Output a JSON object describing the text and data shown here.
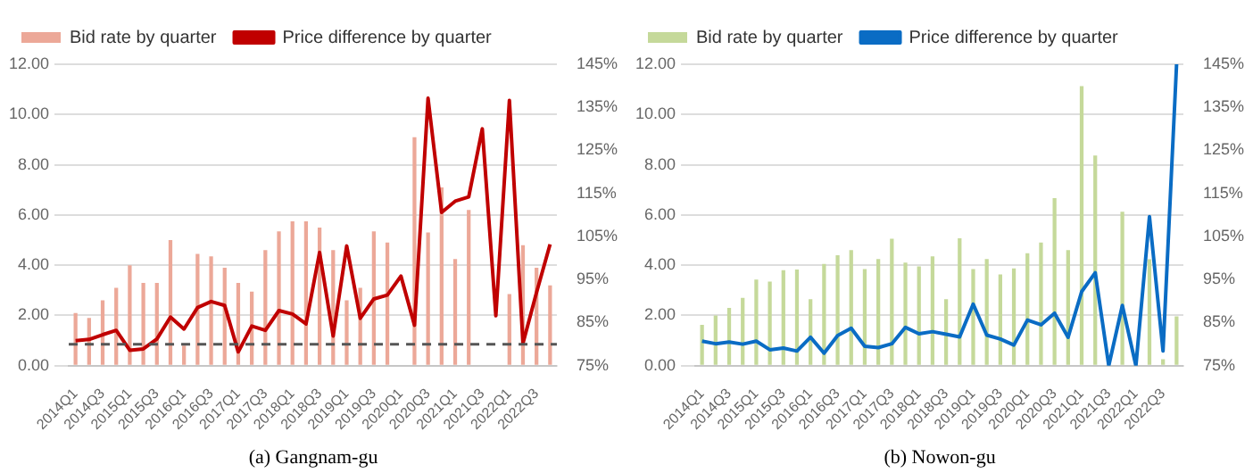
{
  "chart_data": [
    {
      "type": "bar",
      "title": "(a) Gangnam-gu",
      "categories": [
        "2014Q1",
        null,
        "2014Q3",
        null,
        "2015Q1",
        null,
        "2015Q3",
        null,
        "2016Q1",
        null,
        "2016Q3",
        null,
        "2017Q1",
        null,
        "2017Q3",
        null,
        "2018Q1",
        null,
        "2018Q3",
        null,
        "2019Q1",
        null,
        "2019Q3",
        null,
        "2020Q1",
        null,
        "2020Q3",
        null,
        "2021Q1",
        null,
        "2021Q3",
        null,
        "2022Q1",
        null,
        "2022Q3",
        null
      ],
      "series": [
        {
          "name": "Bid rate by quarter",
          "color": "#eca898",
          "values": [
            2.1,
            1.9,
            2.6,
            3.1,
            4.0,
            3.3,
            3.3,
            5.0,
            0.8,
            4.45,
            4.35,
            3.9,
            3.3,
            2.95,
            4.6,
            5.35,
            5.75,
            5.75,
            5.5,
            4.6,
            2.6,
            3.1,
            5.35,
            4.9,
            null,
            9.1,
            5.3,
            7.1,
            4.25,
            6.2,
            null,
            null,
            2.85,
            4.8,
            3.9,
            3.2
          ]
        },
        {
          "name": "Price difference by quarter",
          "type": "line",
          "axis": "y2",
          "color": "#c00000",
          "values": [
            80.8,
            81.1,
            82.2,
            83.2,
            78.6,
            78.9,
            81.2,
            86.3,
            83.5,
            88.5,
            89.9,
            89.0,
            78.2,
            84.2,
            83.2,
            87.8,
            87.0,
            84.7,
            101.3,
            81.9,
            102.8,
            86.0,
            90.5,
            91.4,
            95.8,
            84.4,
            137.1,
            110.6,
            113.2,
            114.2,
            130.0,
            86.6,
            136.6,
            80.2,
            92.0,
            103.2
          ]
        }
      ],
      "ylim": [
        0,
        12
      ],
      "yticks": [
        {
          "value": 0,
          "label": "0.00"
        },
        {
          "value": 2,
          "label": "2.00"
        },
        {
          "value": 4,
          "label": "4.00"
        },
        {
          "value": 6,
          "label": "6.00"
        },
        {
          "value": 8,
          "label": "8.00"
        },
        {
          "value": 10,
          "label": "10.00"
        },
        {
          "value": 12,
          "label": "12.00"
        }
      ],
      "y2lim": [
        75,
        145
      ],
      "y2ticks": [
        {
          "value": 75,
          "label": "75%"
        },
        {
          "value": 85,
          "label": "85%"
        },
        {
          "value": 95,
          "label": "95%"
        },
        {
          "value": 105,
          "label": "105%"
        },
        {
          "value": 115,
          "label": "115%"
        },
        {
          "value": 125,
          "label": "125%"
        },
        {
          "value": 135,
          "label": "135%"
        },
        {
          "value": 145,
          "label": "145%"
        }
      ],
      "ref_lines": [
        {
          "axis": "y2",
          "value": 80,
          "color": "#555555",
          "line_style": "dashed"
        }
      ],
      "grid": "y",
      "legend": "top left",
      "marker": "none"
    },
    {
      "type": "bar",
      "title": "(b) Nowon-gu",
      "categories": [
        "2014Q1",
        null,
        "2014Q3",
        null,
        "2015Q1",
        null,
        "2015Q3",
        null,
        "2016Q1",
        null,
        "2016Q3",
        null,
        "2017Q1",
        null,
        "2017Q3",
        null,
        "2018Q1",
        null,
        "2018Q3",
        null,
        "2019Q1",
        null,
        "2019Q3",
        null,
        "2020Q1",
        null,
        "2020Q3",
        null,
        "2021Q1",
        null,
        "2021Q3",
        null,
        "2022Q1",
        null,
        "2022Q3",
        null
      ],
      "series": [
        {
          "name": "Bid rate by quarter",
          "color": "#c5d99a",
          "values": [
            1.63,
            2.0,
            2.3,
            2.7,
            3.43,
            3.35,
            3.8,
            3.83,
            2.65,
            4.05,
            4.4,
            4.6,
            3.85,
            4.25,
            5.05,
            4.1,
            3.95,
            4.35,
            2.65,
            5.07,
            3.85,
            4.25,
            3.63,
            3.87,
            4.48,
            4.9,
            6.67,
            4.6,
            11.13,
            8.37,
            null,
            6.13,
            null,
            4.24,
            0.26,
            1.96
          ]
        },
        {
          "name": "Price difference by quarter",
          "type": "line",
          "axis": "y2",
          "color": "#0a6cc4",
          "values": [
            80.7,
            80.1,
            80.5,
            80.0,
            80.7,
            78.7,
            79.1,
            78.4,
            81.6,
            77.9,
            82.0,
            83.7,
            79.5,
            79.2,
            80.1,
            83.9,
            82.4,
            82.9,
            82.3,
            81.7,
            89.3,
            82.1,
            81.2,
            79.8,
            85.6,
            84.5,
            87.2,
            81.6,
            92.2,
            96.6,
            75,
            89.0,
            75,
            109.6,
            78.4,
            145
          ]
        }
      ],
      "ylim": [
        0,
        12
      ],
      "yticks": [
        {
          "value": 0,
          "label": "0.00"
        },
        {
          "value": 2,
          "label": "2.00"
        },
        {
          "value": 4,
          "label": "4.00"
        },
        {
          "value": 6,
          "label": "6.00"
        },
        {
          "value": 8,
          "label": "8.00"
        },
        {
          "value": 10,
          "label": "10.00"
        },
        {
          "value": 12,
          "label": "12.00"
        }
      ],
      "y2lim": [
        75,
        145
      ],
      "y2ticks": [
        {
          "value": 75,
          "label": "75%"
        },
        {
          "value": 85,
          "label": "85%"
        },
        {
          "value": 95,
          "label": "95%"
        },
        {
          "value": 105,
          "label": "105%"
        },
        {
          "value": 115,
          "label": "115%"
        },
        {
          "value": 125,
          "label": "125%"
        },
        {
          "value": 135,
          "label": "135%"
        },
        {
          "value": 145,
          "label": "145%"
        }
      ],
      "grid": "y",
      "legend": "top left",
      "marker": "none"
    }
  ]
}
